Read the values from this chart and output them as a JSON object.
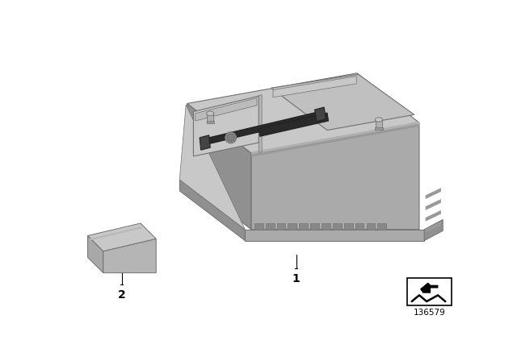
{
  "background_color": "#ffffff",
  "fig_width": 6.4,
  "fig_height": 4.48,
  "dpi": 100,
  "label1_text": "1",
  "label2_text": "2",
  "ref_number": "136579",
  "c_top": "#c8c8c8",
  "c_front": "#aaaaaa",
  "c_left": "#909090",
  "c_edge": "#707070",
  "c_dark": "#555555",
  "c_black": "#222222",
  "c_lid_top": "#c0c0c0",
  "c_lid_side": "#999999",
  "c_strap": "#2a2a2a",
  "c_notch": "#888888"
}
